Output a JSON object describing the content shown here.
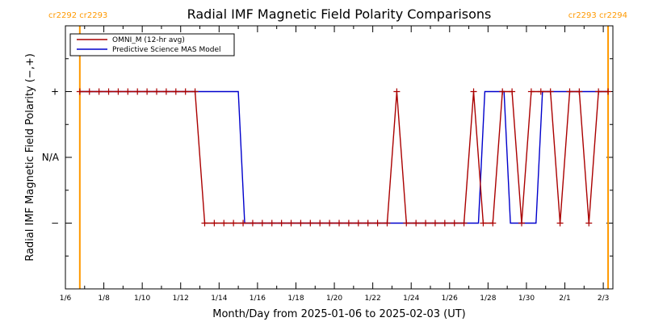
{
  "chart_data": {
    "type": "line",
    "title": "Radial IMF Magnetic Field Polarity Comparisons",
    "xlabel": "Month/Day from 2025-01-06 to 2025-02-03 (UT)",
    "ylabel": "Radial IMF Magnetic Field Polarity (−,+)",
    "x_domain": [
      "2025-01-06T00:00",
      "2025-02-03T12:00"
    ],
    "y_domain": [
      -2,
      2
    ],
    "x_ticks": [
      {
        "date": "2025-01-06",
        "label": "1/6"
      },
      {
        "date": "2025-01-08",
        "label": "1/8"
      },
      {
        "date": "2025-01-10",
        "label": "1/10"
      },
      {
        "date": "2025-01-12",
        "label": "1/12"
      },
      {
        "date": "2025-01-14",
        "label": "1/14"
      },
      {
        "date": "2025-01-16",
        "label": "1/16"
      },
      {
        "date": "2025-01-18",
        "label": "1/18"
      },
      {
        "date": "2025-01-20",
        "label": "1/20"
      },
      {
        "date": "2025-01-22",
        "label": "1/22"
      },
      {
        "date": "2025-01-24",
        "label": "1/24"
      },
      {
        "date": "2025-01-26",
        "label": "1/26"
      },
      {
        "date": "2025-01-28",
        "label": "1/28"
      },
      {
        "date": "2025-01-30",
        "label": "1/30"
      },
      {
        "date": "2025-02-01",
        "label": "2/1"
      },
      {
        "date": "2025-02-03",
        "label": "2/3"
      }
    ],
    "y_ticks": [
      {
        "value": 1,
        "label": "+"
      },
      {
        "value": 0,
        "label": "N/A"
      },
      {
        "value": -1,
        "label": "−"
      }
    ],
    "legend": {
      "position": "top-left",
      "entries": [
        {
          "label": "OMNI_M (12-hr avg)",
          "color": "#aa0000"
        },
        {
          "label": "Predictive Science MAS Model",
          "color": "#0000cc"
        }
      ]
    },
    "markers": [
      {
        "date": "2025-01-06T18:00",
        "label": "cr2292 cr2293",
        "side": "left",
        "color": "#ff9900"
      },
      {
        "date": "2025-02-03T06:00",
        "label": "cr2293 cr2294",
        "side": "right",
        "color": "#ff9900"
      }
    ],
    "series": [
      {
        "name": "OMNI_M (12-hr avg)",
        "color": "#aa0000",
        "marker": "plus",
        "points": [
          [
            "2025-01-06T18:00",
            1
          ],
          [
            "2025-01-07T06:00",
            1
          ],
          [
            "2025-01-07T18:00",
            1
          ],
          [
            "2025-01-08T06:00",
            1
          ],
          [
            "2025-01-08T18:00",
            1
          ],
          [
            "2025-01-09T06:00",
            1
          ],
          [
            "2025-01-09T18:00",
            1
          ],
          [
            "2025-01-10T06:00",
            1
          ],
          [
            "2025-01-10T18:00",
            1
          ],
          [
            "2025-01-11T06:00",
            1
          ],
          [
            "2025-01-11T18:00",
            1
          ],
          [
            "2025-01-12T06:00",
            1
          ],
          [
            "2025-01-12T18:00",
            1
          ],
          [
            "2025-01-13T06:00",
            -1
          ],
          [
            "2025-01-13T18:00",
            -1
          ],
          [
            "2025-01-14T06:00",
            -1
          ],
          [
            "2025-01-14T18:00",
            -1
          ],
          [
            "2025-01-15T06:00",
            -1
          ],
          [
            "2025-01-15T18:00",
            -1
          ],
          [
            "2025-01-16T06:00",
            -1
          ],
          [
            "2025-01-16T18:00",
            -1
          ],
          [
            "2025-01-17T06:00",
            -1
          ],
          [
            "2025-01-17T18:00",
            -1
          ],
          [
            "2025-01-18T06:00",
            -1
          ],
          [
            "2025-01-18T18:00",
            -1
          ],
          [
            "2025-01-19T06:00",
            -1
          ],
          [
            "2025-01-19T18:00",
            -1
          ],
          [
            "2025-01-20T06:00",
            -1
          ],
          [
            "2025-01-20T18:00",
            -1
          ],
          [
            "2025-01-21T06:00",
            -1
          ],
          [
            "2025-01-21T18:00",
            -1
          ],
          [
            "2025-01-22T06:00",
            -1
          ],
          [
            "2025-01-22T18:00",
            -1
          ],
          [
            "2025-01-23T06:00",
            1
          ],
          [
            "2025-01-23T18:00",
            -1
          ],
          [
            "2025-01-24T06:00",
            -1
          ],
          [
            "2025-01-24T18:00",
            -1
          ],
          [
            "2025-01-25T06:00",
            -1
          ],
          [
            "2025-01-25T18:00",
            -1
          ],
          [
            "2025-01-26T06:00",
            -1
          ],
          [
            "2025-01-26T18:00",
            -1
          ],
          [
            "2025-01-27T06:00",
            1
          ],
          [
            "2025-01-27T18:00",
            -1
          ],
          [
            "2025-01-28T06:00",
            -1
          ],
          [
            "2025-01-28T18:00",
            1
          ],
          [
            "2025-01-29T06:00",
            1
          ],
          [
            "2025-01-29T18:00",
            -1
          ],
          [
            "2025-01-30T06:00",
            1
          ],
          [
            "2025-01-30T18:00",
            1
          ],
          [
            "2025-01-31T06:00",
            1
          ],
          [
            "2025-01-31T18:00",
            -1
          ],
          [
            "2025-02-01T06:00",
            1
          ],
          [
            "2025-02-01T18:00",
            1
          ],
          [
            "2025-02-02T06:00",
            -1
          ],
          [
            "2025-02-02T18:00",
            1
          ],
          [
            "2025-02-03T06:00",
            1
          ]
        ]
      },
      {
        "name": "Predictive Science MAS Model",
        "color": "#0000cc",
        "marker": "none",
        "points": [
          [
            "2025-01-06T18:00",
            1
          ],
          [
            "2025-01-15T00:00",
            1
          ],
          [
            "2025-01-15T08:00",
            -1
          ],
          [
            "2025-01-27T12:00",
            -1
          ],
          [
            "2025-01-27T20:00",
            1
          ],
          [
            "2025-01-28T20:00",
            1
          ],
          [
            "2025-01-29T04:00",
            -1
          ],
          [
            "2025-01-30T12:00",
            -1
          ],
          [
            "2025-01-30T20:00",
            1
          ],
          [
            "2025-02-03T06:00",
            1
          ]
        ]
      }
    ]
  }
}
